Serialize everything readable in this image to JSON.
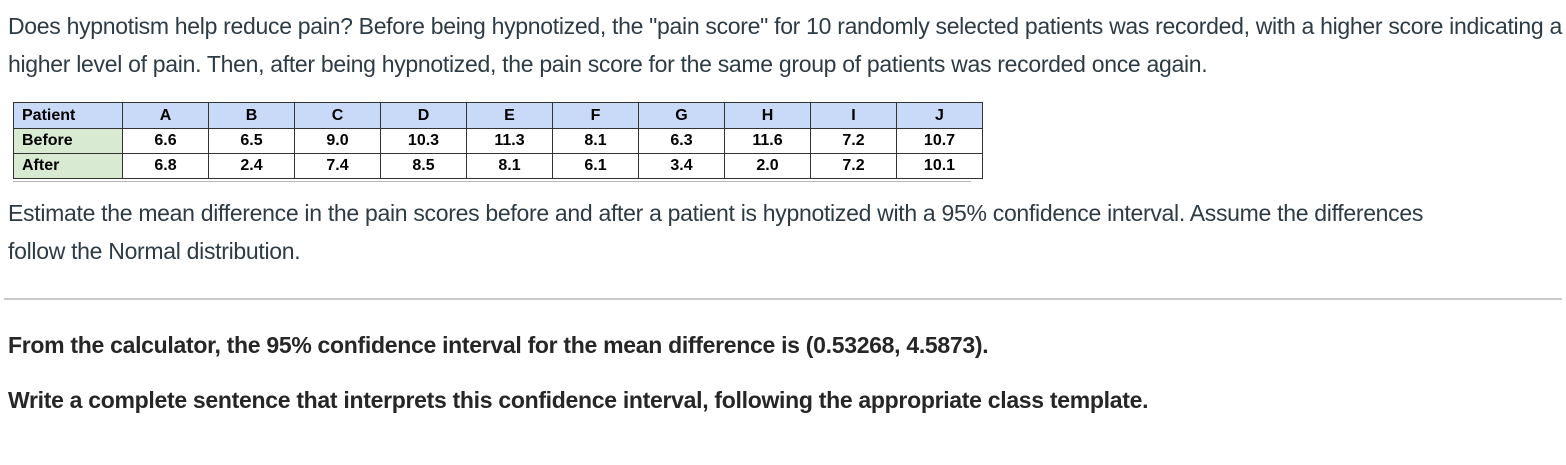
{
  "question": {
    "intro": "Does hypnotism help reduce pain? Before being hypnotized, the \"pain score\" for 10 randomly selected patients was recorded, with a higher score indicating a higher level of pain. Then, after being hypnotized, the pain score for the same group of patients was recorded once again.",
    "prompt": "Estimate the mean difference in the pain scores before and after a patient is hypnotized with a 95% confidence interval. Assume the differences follow the Normal distribution."
  },
  "table": {
    "corner_label": "Patient",
    "row_labels": [
      "Before",
      "After"
    ],
    "patients": [
      "A",
      "B",
      "C",
      "D",
      "E",
      "F",
      "G",
      "H",
      "I",
      "J"
    ],
    "before": [
      "6.6",
      "6.5",
      "9.0",
      "10.3",
      "11.3",
      "8.1",
      "6.3",
      "11.6",
      "7.2",
      "10.7"
    ],
    "after": [
      "6.8",
      "2.4",
      "7.4",
      "8.5",
      "8.1",
      "6.1",
      "3.4",
      "2.0",
      "7.2",
      "10.1"
    ],
    "colors": {
      "header_bg": "#c9daf8",
      "row_label_bg": "#d9ead3",
      "border": "#333333"
    }
  },
  "answer_section": {
    "ci_statement": "From the calculator, the 95% confidence interval for the mean difference is (0.53268, 4.5873).",
    "task_statement": "Write a complete sentence that interprets this confidence interval, following the appropriate class template.",
    "confidence_interval": {
      "lower": "0.53268",
      "upper": "4.5873",
      "level": "95%"
    }
  }
}
